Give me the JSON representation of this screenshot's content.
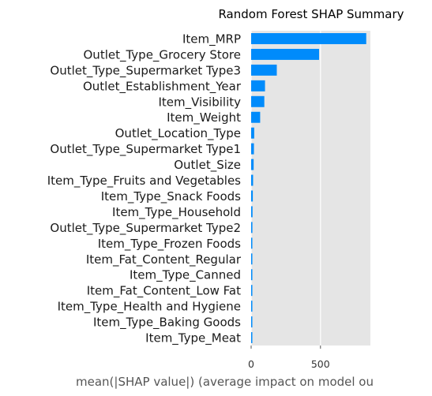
{
  "chart_data": {
    "type": "bar",
    "orientation": "horizontal",
    "title": "Random Forest SHAP Summary",
    "xlabel": "mean(|SHAP value|) (average impact on model ou",
    "ylabel": "",
    "xlim": [
      0,
      860
    ],
    "xticks": [
      0,
      500
    ],
    "grid": true,
    "categories": [
      "Item_MRP",
      "Outlet_Type_Grocery Store",
      "Outlet_Type_Supermarket Type3",
      "Outlet_Establishment_Year",
      "Item_Visibility",
      "Item_Weight",
      "Outlet_Location_Type",
      "Outlet_Type_Supermarket Type1",
      "Outlet_Size",
      "Item_Type_Fruits and Vegetables",
      "Item_Type_Snack Foods",
      "Item_Type_Household",
      "Outlet_Type_Supermarket Type2",
      "Item_Type_Frozen Foods",
      "Item_Fat_Content_Regular",
      "Item_Type_Canned",
      "Item_Fat_Content_Low Fat",
      "Item_Type_Health and Hygiene",
      "Item_Type_Baking Goods",
      "Item_Type_Meat"
    ],
    "values": [
      830,
      490,
      185,
      100,
      95,
      65,
      22,
      20,
      18,
      14,
      12,
      10,
      9,
      8,
      7,
      6,
      6,
      5,
      5,
      4
    ],
    "bar_color": "#008bfb",
    "background_color": "#e5e5e5",
    "grid_color": "#ffffff"
  }
}
